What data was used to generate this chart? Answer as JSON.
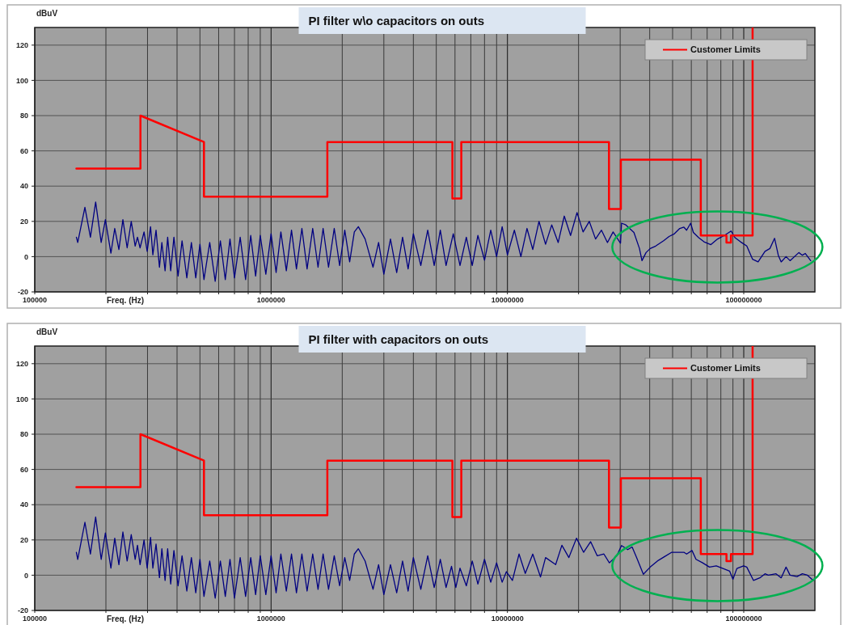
{
  "chart_data": [
    {
      "type": "line",
      "title": "PI filter w\\o capacitors on outs",
      "xlabel": "Freq. (Hz)",
      "ylabel": "dBuV",
      "log": "x",
      "grid": true,
      "legend": "top right",
      "xlim": [
        100000,
        200000000
      ],
      "ylim": [
        -20,
        130
      ],
      "yticks": [
        -20,
        0,
        20,
        40,
        60,
        80,
        100,
        120
      ],
      "xticks": [
        100000,
        {
          "value": 200000,
          "label": null
        },
        {
          "value": 300000,
          "label": null
        },
        {
          "value": 400000,
          "label": null
        },
        {
          "value": 500000,
          "label": null
        },
        {
          "value": 600000,
          "label": null
        },
        {
          "value": 700000,
          "label": null
        },
        {
          "value": 800000,
          "label": null
        },
        {
          "value": 900000,
          "label": null
        },
        1000000,
        {
          "value": 2000000,
          "label": null
        },
        {
          "value": 3000000,
          "label": null
        },
        {
          "value": 4000000,
          "label": null
        },
        {
          "value": 5000000,
          "label": null
        },
        {
          "value": 6000000,
          "label": null
        },
        {
          "value": 7000000,
          "label": null
        },
        {
          "value": 8000000,
          "label": null
        },
        {
          "value": 9000000,
          "label": null
        },
        10000000,
        {
          "value": 20000000,
          "label": null
        },
        {
          "value": 30000000,
          "label": null
        },
        {
          "value": 40000000,
          "label": null
        },
        {
          "value": 50000000,
          "label": null
        },
        {
          "value": 60000000,
          "label": null
        },
        {
          "value": 70000000,
          "label": null
        },
        {
          "value": 80000000,
          "label": null
        },
        {
          "value": 90000000,
          "label": null
        },
        100000000
      ],
      "series": [
        {
          "color": "#000080",
          "x": [
            150000,
            152000,
            163000,
            172000,
            181000,
            191000,
            199000,
            210000,
            218000,
            227000,
            236000,
            246000,
            256000,
            266000,
            272000,
            279000,
            290000,
            299000,
            309000,
            316000,
            326000,
            337000,
            345000,
            356000,
            365000,
            376000,
            388000,
            404000,
            420000,
            440000,
            460000,
            480000,
            500000,
            520000,
            550000,
            580000,
            610000,
            640000,
            670000,
            700000,
            740000,
            780000,
            820000,
            860000,
            900000,
            950000,
            1000000,
            1050000,
            1100000,
            1160000,
            1220000,
            1280000,
            1350000,
            1420000,
            1500000,
            1580000,
            1660000,
            1750000,
            1850000,
            1950000,
            2050000,
            2150000,
            2250000,
            2340000,
            2500000,
            2700000,
            2850000,
            3000000,
            3200000,
            3400000,
            3600000,
            3800000,
            4000000,
            4300000,
            4600000,
            4900000,
            5200000,
            5500000,
            5900000,
            6300000,
            6700000,
            7100000,
            7500000,
            8000000,
            8500000,
            9000000,
            9500000,
            10000000,
            10700000,
            11400000,
            12100000,
            12800000,
            13600000,
            14500000,
            15400000,
            16400000,
            17400000,
            18500000,
            19700000,
            20900000,
            22200000,
            23600000,
            25000000,
            26500000,
            28000000,
            30100000,
            30400000,
            31700000,
            34300000,
            36200000,
            37100000,
            38600000,
            40200000,
            42400000,
            45800000,
            48300000,
            50900000,
            53600000,
            55800000,
            57300000,
            59600000,
            61200000,
            64500000,
            67900000,
            72600000,
            77500000,
            82700000,
            88400000,
            91900000,
            96900000,
            103000000,
            109000000,
            115000000,
            123000000,
            129000000,
            135000000,
            140000000,
            144000000,
            151000000,
            157000000,
            171000000,
            177000000,
            182000000,
            192000000
          ],
          "values": [
            11,
            8,
            28,
            11,
            31,
            8,
            21,
            2,
            16,
            4,
            21,
            5,
            20,
            6,
            11,
            5,
            14,
            3,
            17,
            1,
            15,
            -6,
            8,
            -8,
            11,
            -8,
            11,
            -11,
            9,
            -12,
            8,
            -12,
            7,
            -13,
            8,
            -14,
            9,
            -13,
            10,
            -12,
            11,
            -13,
            12,
            -11,
            12,
            -10,
            13,
            -9,
            14,
            -8,
            15,
            -7,
            16,
            -7,
            16,
            -6,
            16,
            -6,
            16,
            -5,
            15,
            -3,
            14,
            17,
            10,
            -6,
            8,
            -10,
            10,
            -9,
            11,
            -7,
            13,
            -5,
            15,
            -5,
            15,
            -5,
            13,
            -5,
            11,
            -5,
            12,
            -2,
            15,
            0,
            17,
            1,
            15,
            0,
            16,
            4,
            20,
            7,
            18,
            8,
            23,
            12,
            25,
            14,
            20,
            10,
            15,
            8,
            14,
            7.6,
            19,
            18,
            13.7,
            4.6,
            -2.3,
            2.3,
            4.6,
            6,
            9,
            11.4,
            13,
            16,
            16.7,
            15,
            19,
            13.7,
            10.7,
            8.4,
            6.8,
            10,
            12,
            14.5,
            10.7,
            8.4,
            6,
            -1.5,
            -3,
            3,
            4.6,
            10.4,
            0.8,
            -3,
            0,
            -2.3,
            2.3,
            0.8,
            1.8,
            -2.3
          ]
        },
        {
          "name": "Customer Limits",
          "color": "#ff0000",
          "x": [
            150000,
            280000,
            280000,
            520000,
            520000,
            1730000,
            1730000,
            5850000,
            5850000,
            6380000,
            6380000,
            26900000,
            26900000,
            30200000,
            30200000,
            65800000,
            65800000,
            84500000,
            84500000,
            88300000,
            88300000,
            109000000,
            109000000
          ],
          "values": [
            50,
            50,
            80,
            65,
            34,
            34,
            65,
            65,
            33,
            33,
            65,
            65,
            27,
            27,
            55,
            55,
            12,
            12,
            8,
            8,
            12,
            12,
            130
          ]
        }
      ]
    },
    {
      "type": "line",
      "title": "PI filter with capacitors on outs",
      "xlabel": "Freq. (Hz)",
      "ylabel": "dBuV",
      "log": "x",
      "grid": true,
      "legend": "top right",
      "xlim": [
        100000,
        200000000
      ],
      "ylim": [
        -20,
        130
      ],
      "yticks": [
        -20,
        0,
        20,
        40,
        60,
        80,
        100,
        120
      ],
      "xticks": [
        100000,
        {
          "value": 200000,
          "label": null
        },
        {
          "value": 300000,
          "label": null
        },
        {
          "value": 400000,
          "label": null
        },
        {
          "value": 500000,
          "label": null
        },
        {
          "value": 600000,
          "label": null
        },
        {
          "value": 700000,
          "label": null
        },
        {
          "value": 800000,
          "label": null
        },
        {
          "value": 900000,
          "label": null
        },
        1000000,
        {
          "value": 2000000,
          "label": null
        },
        {
          "value": 3000000,
          "label": null
        },
        {
          "value": 4000000,
          "label": null
        },
        {
          "value": 5000000,
          "label": null
        },
        {
          "value": 6000000,
          "label": null
        },
        {
          "value": 7000000,
          "label": null
        },
        {
          "value": 8000000,
          "label": null
        },
        {
          "value": 9000000,
          "label": null
        },
        10000000,
        {
          "value": 20000000,
          "label": null
        },
        {
          "value": 30000000,
          "label": null
        },
        {
          "value": 40000000,
          "label": null
        },
        {
          "value": 50000000,
          "label": null
        },
        {
          "value": 60000000,
          "label": null
        },
        {
          "value": 70000000,
          "label": null
        },
        {
          "value": 80000000,
          "label": null
        },
        {
          "value": 90000000,
          "label": null
        },
        100000000
      ],
      "series": [
        {
          "color": "#000080",
          "x": [
            150000,
            152000,
            163000,
            172000,
            181000,
            191000,
            199000,
            210000,
            218000,
            227000,
            236000,
            246000,
            256000,
            266000,
            272000,
            279000,
            290000,
            299000,
            309000,
            316000,
            326000,
            337000,
            345000,
            356000,
            365000,
            376000,
            388000,
            404000,
            420000,
            440000,
            460000,
            480000,
            500000,
            520000,
            550000,
            580000,
            610000,
            640000,
            670000,
            700000,
            740000,
            780000,
            820000,
            860000,
            900000,
            950000,
            1000000,
            1050000,
            1100000,
            1160000,
            1220000,
            1280000,
            1350000,
            1420000,
            1500000,
            1580000,
            1660000,
            1750000,
            1850000,
            1950000,
            2050000,
            2150000,
            2250000,
            2340000,
            2500000,
            2700000,
            2850000,
            3000000,
            3200000,
            3400000,
            3600000,
            3800000,
            4000000,
            4300000,
            4600000,
            4900000,
            5200000,
            5500000,
            5800000,
            6050000,
            6300000,
            6700000,
            7100000,
            7500000,
            8000000,
            8500000,
            9000000,
            9500000,
            9900000,
            10500000,
            11200000,
            11900000,
            12800000,
            13800000,
            14500000,
            16000000,
            17000000,
            18200000,
            19600000,
            21000000,
            22500000,
            24000000,
            25600000,
            27000000,
            29000000,
            30400000,
            32300000,
            33700000,
            35200000,
            37600000,
            40200000,
            43500000,
            46400000,
            49600000,
            52800000,
            55800000,
            57300000,
            60400000,
            62800000,
            67000000,
            71600000,
            76500000,
            81700000,
            87200000,
            90000000,
            93500000,
            99800000,
            103000000,
            110000000,
            117000000,
            123000000,
            127000000,
            137000000,
            144000000,
            151000000,
            157000000,
            168000000,
            177000000,
            186000000,
            197000000
          ],
          "values": [
            13,
            9,
            30,
            12,
            33,
            9,
            24,
            4,
            21,
            6,
            24.5,
            8,
            23,
            9,
            17,
            6,
            20,
            4,
            21.5,
            4,
            17.7,
            -1.4,
            15,
            -3,
            15,
            -5,
            14,
            -6,
            11,
            -9,
            10,
            -10,
            9,
            -12,
            8,
            -13,
            8,
            -12,
            9,
            -13,
            10,
            -12,
            10,
            -11,
            11,
            -11,
            11,
            -10,
            12,
            -9,
            12,
            -10,
            12,
            -9,
            12,
            -8,
            12,
            -8,
            11,
            -6,
            10,
            -3,
            12,
            15,
            8,
            -8,
            6,
            -11,
            6,
            -10,
            8,
            -9,
            10,
            -8,
            11,
            -7,
            9,
            -7,
            5,
            -7,
            4,
            -6,
            8,
            -5,
            9,
            -4,
            7,
            -4,
            2,
            -3,
            12,
            1,
            12,
            -1,
            10,
            6,
            17,
            10,
            21,
            13,
            19,
            11,
            12,
            7,
            11,
            16.8,
            14.5,
            16,
            10,
            0.5,
            4.6,
            8.4,
            10.7,
            13,
            13,
            13,
            12,
            14,
            9,
            7,
            4.6,
            5.3,
            3.8,
            2.3,
            -2.3,
            3.8,
            5.3,
            4.6,
            -3,
            -1.5,
            0.8,
            0,
            0.8,
            -1.5,
            4.6,
            0,
            -0.8,
            0.8,
            0,
            -3
          ]
        },
        {
          "name": "Customer Limits",
          "color": "#ff0000",
          "x": [
            150000,
            280000,
            280000,
            520000,
            520000,
            1730000,
            1730000,
            5850000,
            5850000,
            6380000,
            6380000,
            26900000,
            26900000,
            30200000,
            30200000,
            65800000,
            65800000,
            84500000,
            84500000,
            88300000,
            88300000,
            109000000,
            109000000
          ],
          "values": [
            50,
            50,
            80,
            65,
            34,
            34,
            65,
            65,
            33,
            33,
            65,
            65,
            27,
            27,
            55,
            55,
            12,
            12,
            8,
            8,
            12,
            12,
            130
          ]
        }
      ]
    }
  ]
}
